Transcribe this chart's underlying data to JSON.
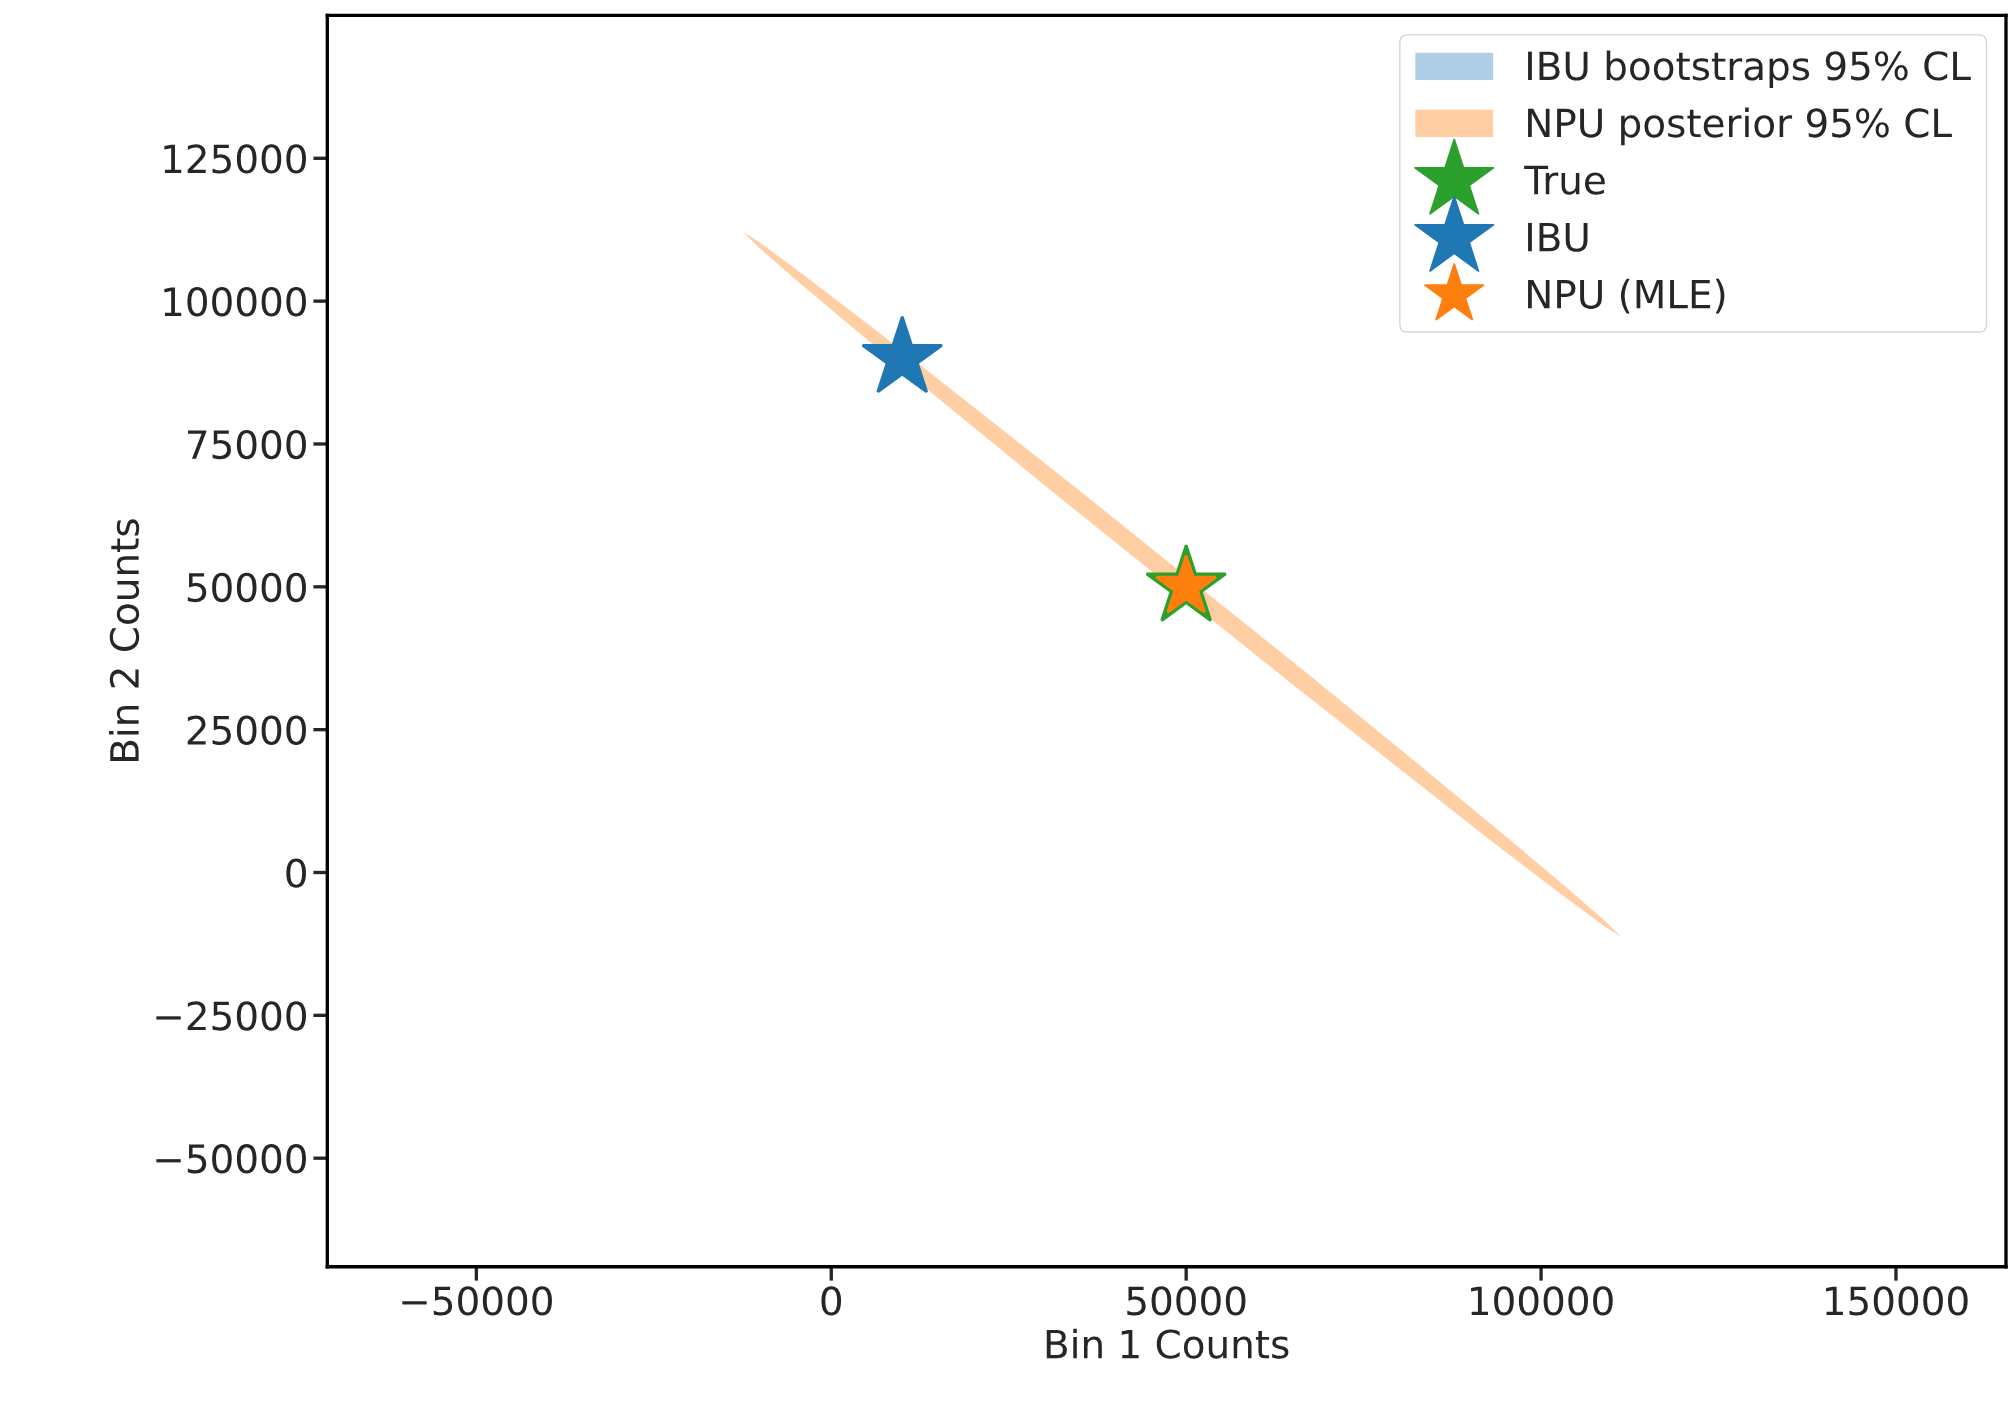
{
  "chart_data": {
    "type": "scatter",
    "xlabel": "Bin 1 Counts",
    "ylabel": "Bin 2 Counts",
    "xlim": [
      -71000,
      165500
    ],
    "ylim": [
      -69000,
      150000
    ],
    "xticks": [
      -50000,
      0,
      50000,
      100000,
      150000
    ],
    "yticks": [
      -50000,
      -25000,
      0,
      25000,
      50000,
      75000,
      100000,
      125000
    ],
    "grid": false,
    "legend": "top right",
    "series": [
      {
        "name": "IBU bootstraps 95% CL",
        "type": "area",
        "color": "#b0cfe6",
        "x": [
          null
        ],
        "values": [
          null
        ]
      },
      {
        "name": "NPU posterior 95% CL",
        "type": "area",
        "color": "#ffcfa3",
        "x": [
          111200,
          109300,
          103300,
          93700,
          81000,
          66200,
          null,
          34200,
          19200,
          6300,
          -3700,
          -10100,
          -12400,
          -10500,
          -4500,
          5100,
          17800,
          32600,
          null,
          64600,
          79600,
          92500,
          102500,
          108900
        ],
        "values": [
          -11200,
          -8800,
          -2300,
          7700,
          20700,
          35700,
          null,
          67600,
          82300,
          94900,
          104400,
          110300,
          112100,
          109700,
          103200,
          93200,
          80200,
          65200,
          null,
          33300,
          18600,
          6000,
          -3500,
          -9400
        ]
      },
      {
        "name": "True",
        "marker": "star",
        "color": "#2ca02c",
        "x": [
          50000
        ],
        "values": [
          50000
        ]
      },
      {
        "name": "IBU",
        "marker": "star",
        "color": "#1f77b4",
        "x": [
          10000
        ],
        "values": [
          90000
        ]
      },
      {
        "name": "NPU (MLE)",
        "marker": "star",
        "color": "#ff7f0e",
        "x": [
          50000
        ],
        "values": [
          50000
        ]
      }
    ]
  }
}
